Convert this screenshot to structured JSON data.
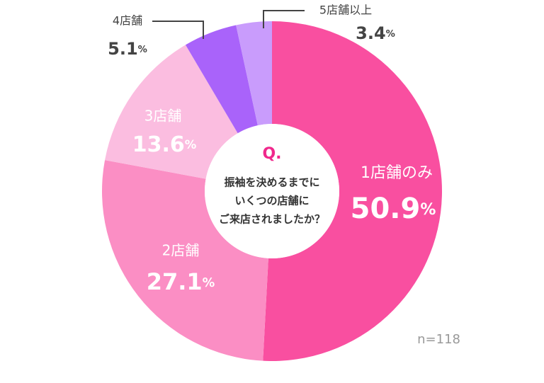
{
  "chart_data": {
    "type": "donut",
    "title": "Q.",
    "question_lines": [
      "振袖を決めるまでに",
      "いくつの店舗に",
      "ご来店されましたか？"
    ],
    "categories": [
      "1店舗のみ",
      "2店舗",
      "3店舗",
      "4店舗",
      "5店舗以上"
    ],
    "values": [
      50.9,
      27.1,
      13.6,
      5.1,
      3.4
    ],
    "value_suffix": "%",
    "colors": [
      "#f94fa0",
      "#fb8ec4",
      "#fbbde0",
      "#a963fa",
      "#c99cfc"
    ],
    "note": "n=118"
  }
}
